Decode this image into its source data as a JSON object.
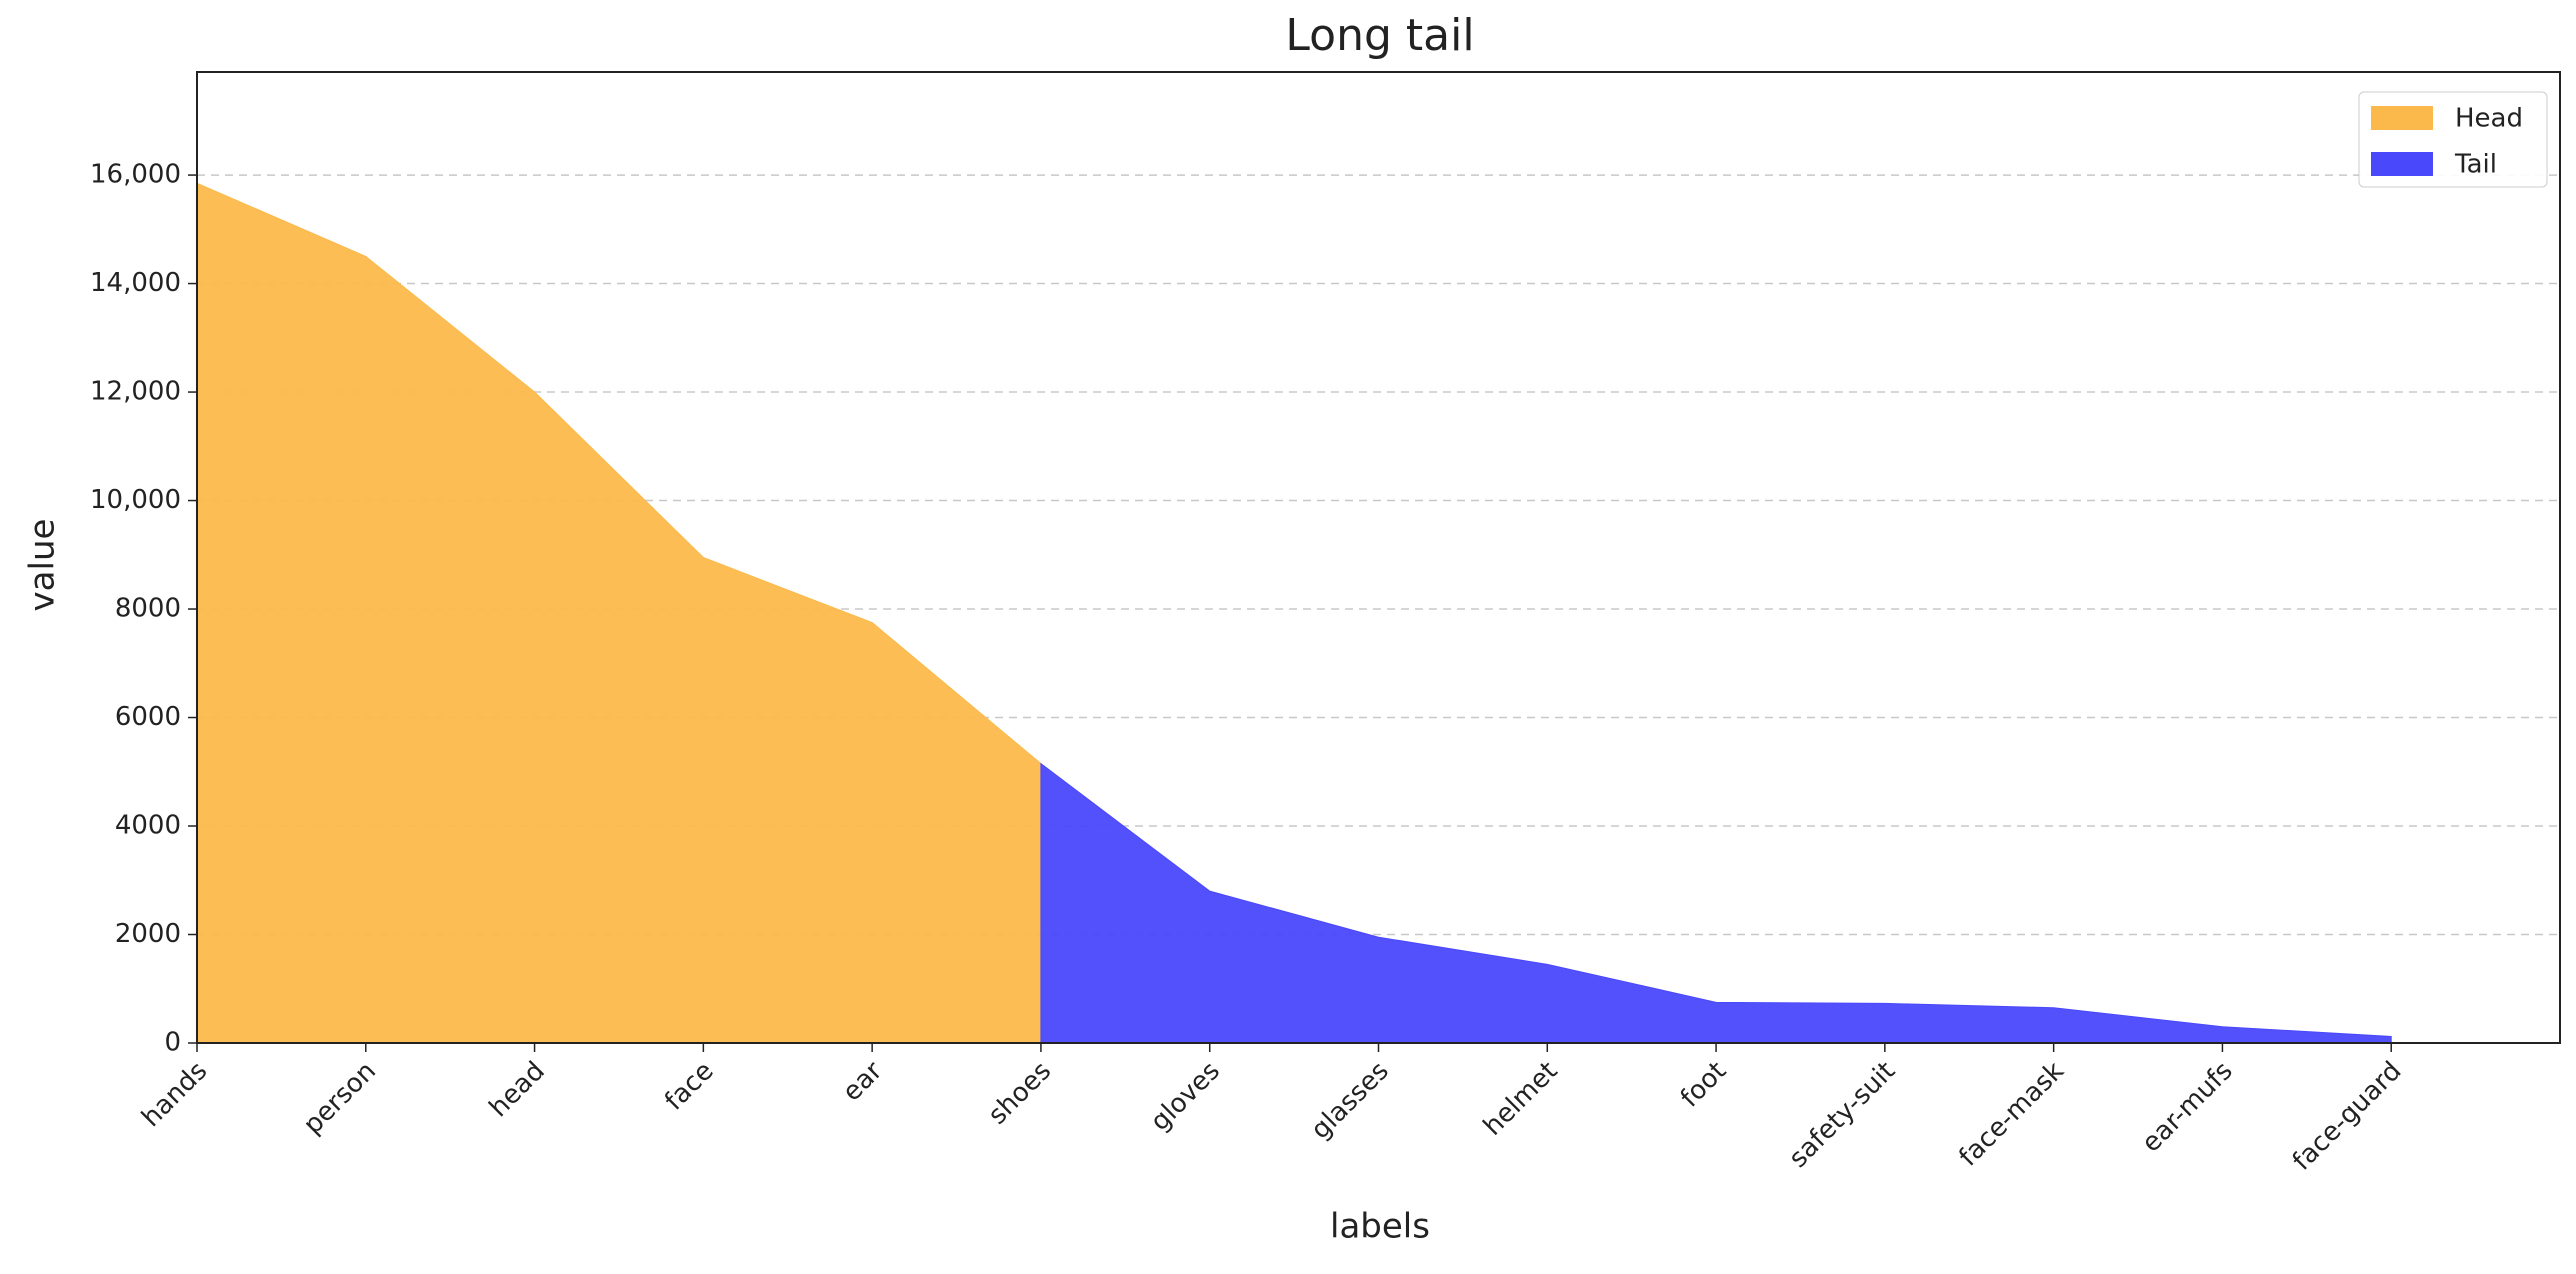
{
  "chart_data": {
    "type": "area",
    "title": "Long tail",
    "x_label": "labels",
    "y_label": "value",
    "categories": [
      "hands",
      "person",
      "head",
      "face",
      "ear",
      "shoes",
      "gloves",
      "glasses",
      "helmet",
      "foot",
      "safety-suit",
      "face-mask",
      "ear-mufs",
      "face-guard"
    ],
    "series": [
      {
        "name": "Head",
        "color": "#fcb94b",
        "values": [
          15850,
          14500,
          12000,
          8950,
          7750,
          5150,
          null,
          null,
          null,
          null,
          null,
          null,
          null,
          null
        ]
      },
      {
        "name": "Tail",
        "color": "#4a48fb",
        "values": [
          null,
          null,
          null,
          null,
          null,
          5150,
          2800,
          1950,
          1450,
          750,
          730,
          650,
          300,
          120
        ]
      }
    ],
    "ylim": [
      0,
      17900
    ],
    "yticks": [
      0,
      2000,
      4000,
      6000,
      8000,
      {
        "value": 10000,
        "label": "10,000"
      },
      {
        "value": 12000,
        "label": "12,000"
      },
      {
        "value": 14000,
        "label": "14,000"
      },
      {
        "value": 16000,
        "label": "16,000"
      }
    ],
    "grid": true,
    "legend": "upper right"
  }
}
